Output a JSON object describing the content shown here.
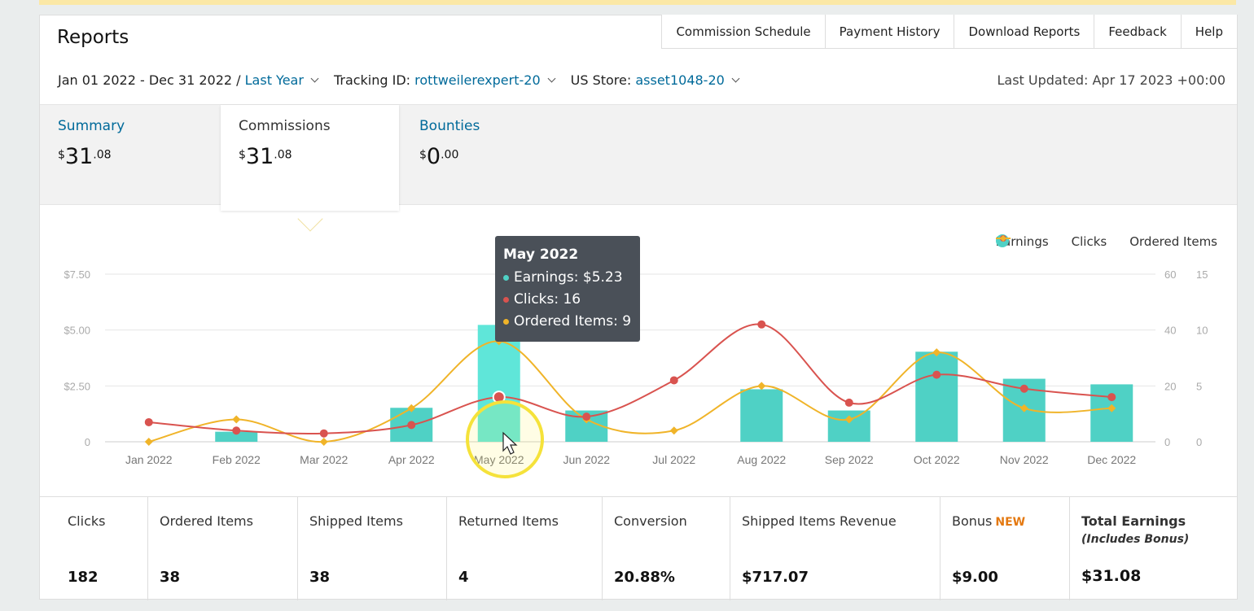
{
  "header": {
    "title": "Reports",
    "links": [
      "Commission Schedule",
      "Payment History",
      "Download Reports",
      "Feedback",
      "Help"
    ]
  },
  "filters": {
    "date_range": "Jan 01 2022 - Dec 31 2022 /",
    "period": "Last Year",
    "tracking_label": "Tracking ID:",
    "tracking_value": "rottweilerexpert-20",
    "store_label": "US Store:",
    "store_value": "asset1048-20",
    "last_updated": "Last Updated: Apr 17 2023 +00:00"
  },
  "tabs": [
    {
      "label": "Summary",
      "currency": "$",
      "whole": "31",
      "cents": ".08"
    },
    {
      "label": "Commissions",
      "currency": "$",
      "whole": "31",
      "cents": ".08"
    },
    {
      "label": "Bounties",
      "currency": "$",
      "whole": "0",
      "cents": ".00"
    }
  ],
  "legend": {
    "earnings": "Earnings",
    "clicks": "Clicks",
    "ordered": "Ordered Items"
  },
  "tooltip": {
    "title": "May 2022",
    "earnings": "Earnings: $5.23",
    "clicks": "Clicks: 16",
    "ordered": "Ordered Items: 9"
  },
  "colors": {
    "earnings": "#4fd1c5",
    "clicks": "#d9534f",
    "ordered": "#f0b429"
  },
  "chart_data": {
    "type": "bar",
    "categories": [
      "Jan 2022",
      "Feb 2022",
      "Mar 2022",
      "Apr 2022",
      "May 2022",
      "Jun 2022",
      "Jul 2022",
      "Aug 2022",
      "Sep 2022",
      "Oct 2022",
      "Nov 2022",
      "Dec 2022"
    ],
    "series": [
      {
        "name": "Earnings",
        "type": "bar",
        "axis": "left",
        "values": [
          0,
          0.45,
          0,
          1.52,
          5.23,
          1.4,
          0,
          2.35,
          1.4,
          4.03,
          2.82,
          2.57
        ]
      },
      {
        "name": "Clicks",
        "type": "line",
        "axis": "right1",
        "values": [
          7,
          4,
          3,
          6,
          16,
          9,
          22,
          42,
          14,
          24,
          19,
          16
        ]
      },
      {
        "name": "Ordered Items",
        "type": "line",
        "axis": "right2",
        "values": [
          0,
          2,
          0,
          3,
          9,
          2,
          1,
          5,
          2,
          8,
          3,
          3
        ]
      }
    ],
    "yleft": {
      "ticks": [
        "0",
        "$2.50",
        "$5.00",
        "$7.50"
      ],
      "max": 7.5
    },
    "yright1": {
      "ticks": [
        "0",
        "20",
        "40",
        "60"
      ],
      "max": 60
    },
    "yright2": {
      "ticks": [
        "0",
        "5",
        "10",
        "15"
      ],
      "max": 15
    },
    "grid": true,
    "legend_position": "top-right"
  },
  "stats": [
    {
      "label": "Clicks",
      "value": "182"
    },
    {
      "label": "Ordered Items",
      "value": "38"
    },
    {
      "label": "Shipped Items",
      "value": "38"
    },
    {
      "label": "Returned Items",
      "value": "4"
    },
    {
      "label": "Conversion",
      "value": "20.88%"
    },
    {
      "label": "Shipped Items Revenue",
      "value": "$717.07"
    },
    {
      "label": "Bonus",
      "badge": "NEW",
      "value": "$9.00"
    },
    {
      "label": "Total Earnings",
      "sub": "(Includes Bonus)",
      "value": "$31.08"
    }
  ]
}
